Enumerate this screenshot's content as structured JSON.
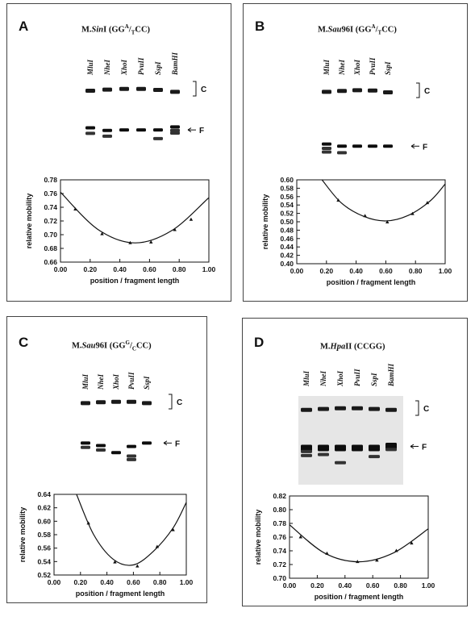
{
  "panels": [
    {
      "id": "A",
      "letter": "A",
      "title": {
        "prefix": "M.",
        "enzyme_italic": "Sin",
        "enzyme_suffix": "I (GG",
        "sup": "A",
        "slash": "/",
        "sub": "T",
        "tail": "CC)"
      },
      "lanes": [
        "MluI",
        "NheI",
        "XhoI",
        "PvuII",
        "SspI",
        "BamHI"
      ],
      "band_labels": {
        "complex": "C",
        "free": "F"
      },
      "gel": {
        "complex_rel": [
          0.62,
          0.45,
          0.35,
          0.35,
          0.5,
          0.8
        ],
        "free_rel": [
          [
            0.3,
            0.62
          ],
          [
            0.45,
            0.78
          ],
          [
            0.42
          ],
          [
            0.42
          ],
          [
            0.42,
            0.92
          ],
          [
            0.25,
            0.45,
            0.6
          ]
        ],
        "free_band_y": 0.42
      },
      "chart_data": {
        "type": "scatter",
        "xlabel": "position / fragment length",
        "ylabel": "relative mobility",
        "xlim": [
          0.0,
          1.0
        ],
        "ylim": [
          0.66,
          0.78
        ],
        "xticks": [
          "0.00",
          "0.20",
          "0.40",
          "0.60",
          "0.80",
          "1.00"
        ],
        "yticks": [
          "0.66",
          "0.68",
          "0.70",
          "0.72",
          "0.74",
          "0.76",
          "0.78"
        ],
        "points": [
          [
            0.1,
            0.737
          ],
          [
            0.28,
            0.701
          ],
          [
            0.47,
            0.688
          ],
          [
            0.61,
            0.689
          ],
          [
            0.77,
            0.707
          ],
          [
            0.88,
            0.722
          ]
        ],
        "curve": [
          [
            0.0,
            0.762
          ],
          [
            0.25,
            0.708
          ],
          [
            0.5,
            0.688
          ],
          [
            0.75,
            0.706
          ],
          [
            1.0,
            0.754
          ]
        ],
        "marker": "triangle"
      }
    },
    {
      "id": "B",
      "letter": "B",
      "title": {
        "prefix": "M.",
        "enzyme_italic": "Sau",
        "enzyme_suffix": "96I (GG",
        "sup": "A",
        "slash": "/",
        "sub": "T",
        "tail": "CC)"
      },
      "lanes": [
        "MluI",
        "NheI",
        "XhoI",
        "PvuII",
        "SspI"
      ],
      "band_labels": {
        "complex": "C",
        "free": "F"
      },
      "gel": {
        "complex_rel": [
          0.55,
          0.4,
          0.3,
          0.35,
          0.62
        ],
        "free_rel": [
          [
            0.2,
            0.5,
            0.75
          ],
          [
            0.35,
            0.8
          ],
          [
            0.35
          ],
          [
            0.35
          ],
          [
            0.35
          ]
        ],
        "free_band_y": 0.35
      },
      "chart_data": {
        "type": "scatter",
        "xlabel": "position / fragment length",
        "ylabel": "relative mobility",
        "xlim": [
          0.0,
          1.0
        ],
        "ylim": [
          0.4,
          0.6
        ],
        "xticks": [
          "0.00",
          "0.20",
          "0.40",
          "0.60",
          "0.80",
          "1.00"
        ],
        "yticks": [
          "0.40",
          "0.42",
          "0.44",
          "0.46",
          "0.48",
          "0.50",
          "0.52",
          "0.54",
          "0.56",
          "0.58",
          "0.60"
        ],
        "points": [
          [
            0.28,
            0.551
          ],
          [
            0.46,
            0.514
          ],
          [
            0.61,
            0.499
          ],
          [
            0.78,
            0.519
          ],
          [
            0.88,
            0.545
          ]
        ],
        "curve": [
          [
            0.17,
            0.6
          ],
          [
            0.3,
            0.545
          ],
          [
            0.45,
            0.513
          ],
          [
            0.6,
            0.502
          ],
          [
            0.75,
            0.515
          ],
          [
            0.9,
            0.55
          ],
          [
            1.0,
            0.59
          ]
        ],
        "marker": "triangle"
      }
    },
    {
      "id": "C",
      "letter": "C",
      "title": {
        "prefix": "M.",
        "enzyme_italic": "Sau",
        "enzyme_suffix": "96I (GG",
        "sup": "G",
        "slash": "/",
        "sub": "C",
        "tail": "CC)"
      },
      "lanes": [
        "MluI",
        "NheI",
        "XhoI",
        "PvuII",
        "SspI"
      ],
      "band_labels": {
        "complex": "C",
        "free": "F"
      },
      "gel": {
        "complex_rel": [
          0.55,
          0.4,
          0.35,
          0.35,
          0.55
        ],
        "free_rel": [
          [
            0.2,
            0.45
          ],
          [
            0.35,
            0.6
          ],
          [
            0.75
          ],
          [
            0.4,
            0.95,
            1.15
          ],
          [
            0.2
          ]
        ],
        "free_band_y": 0.2
      },
      "chart_data": {
        "type": "scatter",
        "xlabel": "position / fragment length",
        "ylabel": "relative mobility",
        "xlim": [
          0.0,
          1.0
        ],
        "ylim": [
          0.52,
          0.64
        ],
        "xticks": [
          "0.00",
          "0.20",
          "0.40",
          "0.60",
          "0.80",
          "1.00"
        ],
        "yticks": [
          "0.52",
          "0.54",
          "0.56",
          "0.58",
          "0.60",
          "0.62",
          "0.64"
        ],
        "points": [
          [
            0.26,
            0.597
          ],
          [
            0.46,
            0.539
          ],
          [
            0.63,
            0.533
          ],
          [
            0.78,
            0.562
          ],
          [
            0.9,
            0.587
          ]
        ],
        "curve": [
          [
            0.17,
            0.64
          ],
          [
            0.3,
            0.58
          ],
          [
            0.45,
            0.543
          ],
          [
            0.6,
            0.535
          ],
          [
            0.75,
            0.555
          ],
          [
            0.9,
            0.59
          ],
          [
            1.0,
            0.628
          ]
        ],
        "marker": "triangle"
      }
    },
    {
      "id": "D",
      "letter": "D",
      "title": {
        "prefix": "M.",
        "enzyme_italic": "Hpa",
        "enzyme_suffix": "II (CCGG)",
        "sup": "",
        "slash": "",
        "sub": "",
        "tail": ""
      },
      "lanes": [
        "MluI",
        "NheI",
        "XhoI",
        "PvuII",
        "SspI",
        "BamHI"
      ],
      "band_labels": {
        "complex": "C",
        "free": "F"
      },
      "gel": {
        "complex_rel": [
          0.6,
          0.45,
          0.35,
          0.35,
          0.45,
          0.6
        ],
        "free_rel": [
          [
            0.3,
            0.55,
            0.75
          ],
          [
            0.3,
            0.7
          ],
          [
            0.3,
            1.1
          ],
          [
            0.3
          ],
          [
            0.3,
            0.8
          ],
          [
            0.2,
            0.45
          ]
        ],
        "free_band_y": 0.3
      },
      "chart_data": {
        "type": "scatter",
        "xlabel": "position / fragment length",
        "ylabel": "relative mobility",
        "xlim": [
          0.0,
          1.0
        ],
        "ylim": [
          0.7,
          0.82
        ],
        "xticks": [
          "0.00",
          "0.20",
          "0.40",
          "0.60",
          "0.80",
          "1.00"
        ],
        "yticks": [
          "0.70",
          "0.72",
          "0.74",
          "0.76",
          "0.78",
          "0.80",
          "0.82"
        ],
        "points": [
          [
            0.08,
            0.76
          ],
          [
            0.27,
            0.736
          ],
          [
            0.49,
            0.724
          ],
          [
            0.63,
            0.726
          ],
          [
            0.77,
            0.74
          ],
          [
            0.88,
            0.751
          ]
        ],
        "curve": [
          [
            0.0,
            0.778
          ],
          [
            0.25,
            0.737
          ],
          [
            0.5,
            0.724
          ],
          [
            0.75,
            0.737
          ],
          [
            1.0,
            0.772
          ]
        ],
        "marker": "triangle"
      }
    }
  ]
}
